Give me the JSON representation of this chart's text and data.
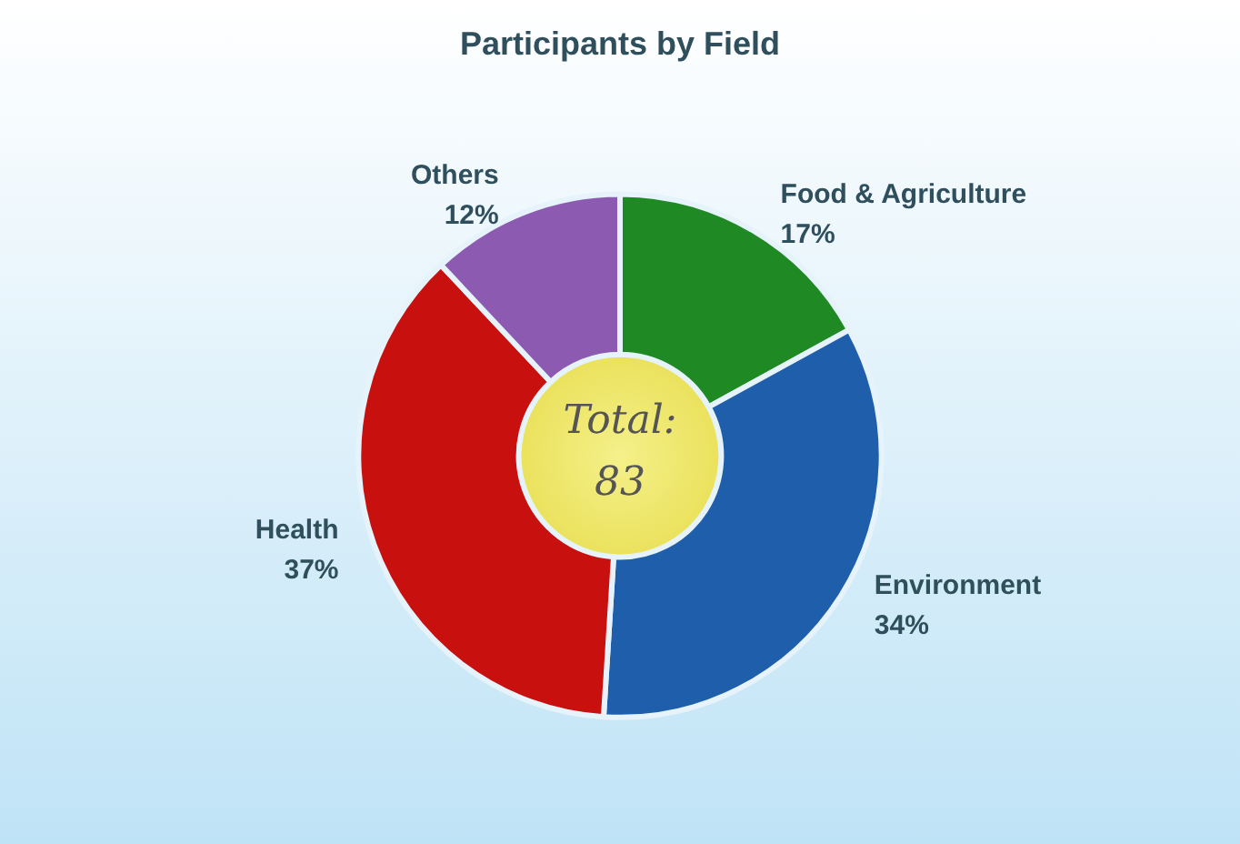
{
  "chart_data": {
    "type": "donut",
    "title": "Participants by Field",
    "categories": [
      "Food & Agriculture",
      "Environment",
      "Health",
      "Others"
    ],
    "values": [
      17,
      34,
      37,
      12
    ],
    "value_labels": [
      "17%",
      "34%",
      "37%",
      "12%"
    ],
    "colors": [
      "#1f8a24",
      "#1e5eab",
      "#c8100e",
      "#8c5ab0"
    ],
    "annotations": [
      "Total:\n83"
    ],
    "legend": false
  }
}
